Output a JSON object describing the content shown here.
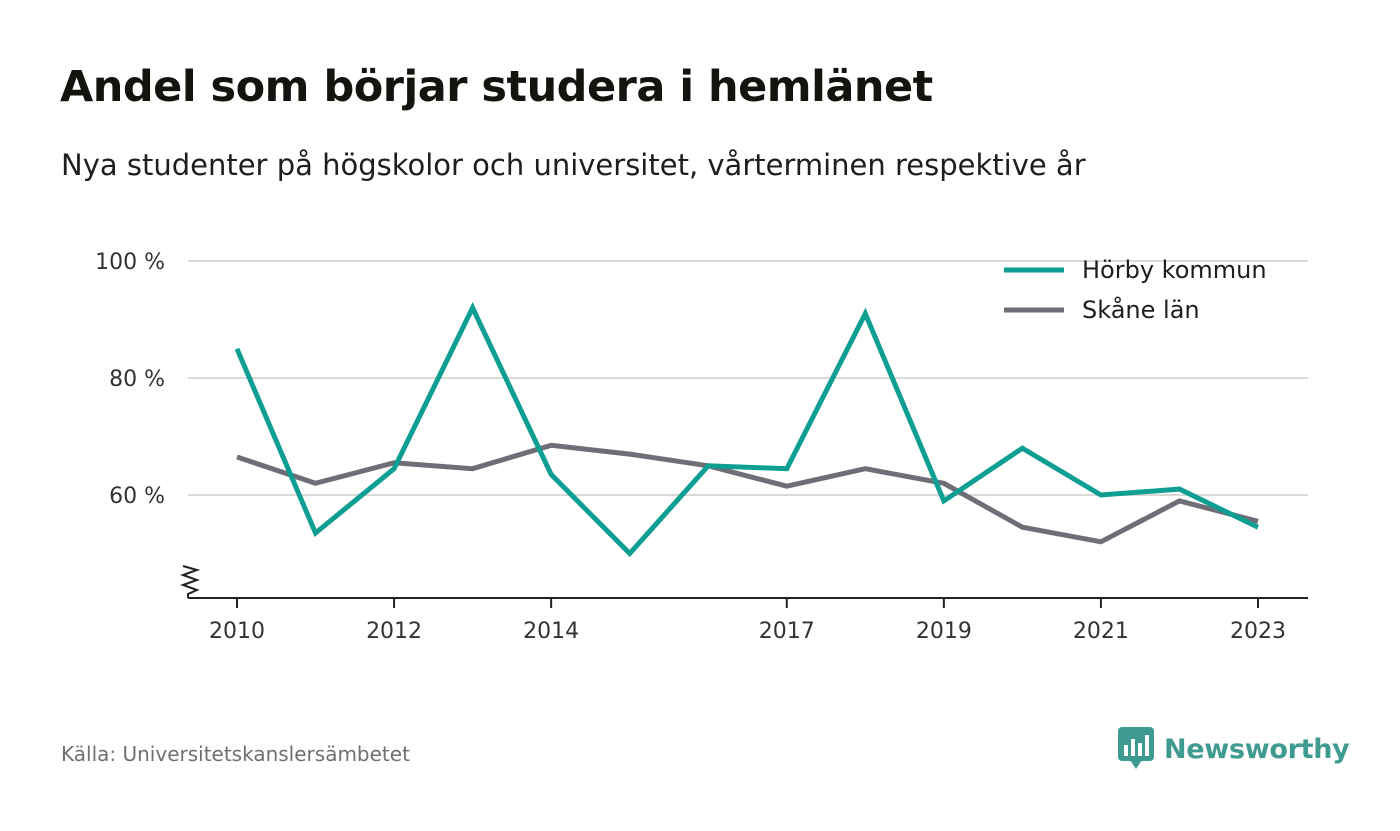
{
  "title": "Andel som börjar studera i hemlänet",
  "subtitle": "Nya studenter på högskolor och universitet, vårterminen respektive år",
  "source": "Källa: Universitetskanslersämbetet",
  "brand": {
    "name": "Newsworthy",
    "color": "#3f9b90",
    "icon": "newsworthy-logo-icon"
  },
  "chart_data": {
    "type": "line",
    "title": "Andel som börjar studera i hemlänet",
    "subtitle": "Nya studenter på högskolor och universitet, vårterminen respektive år",
    "ylim": [
      42.5,
      100
    ],
    "y_ticks": [
      {
        "value": 60,
        "label": "60 %"
      },
      {
        "value": 80,
        "label": "80 %"
      },
      {
        "value": 100,
        "label": "100 %"
      }
    ],
    "x_ticks": [
      {
        "value": 2010,
        "label": "2010"
      },
      {
        "value": 2012,
        "label": "2012"
      },
      {
        "value": 2014,
        "label": "2014"
      },
      {
        "value": 2017,
        "label": "2017"
      },
      {
        "value": 2019,
        "label": "2019"
      },
      {
        "value": 2021,
        "label": "2021"
      },
      {
        "value": 2023,
        "label": "2023"
      }
    ],
    "xlim": [
      2009.35,
      2023.65
    ],
    "grid": true,
    "y_axis_break": true,
    "legend_position": "top-right",
    "x": [
      2010,
      2011,
      2012,
      2013,
      2014,
      2015,
      2016,
      2017,
      2018,
      2019,
      2020,
      2021,
      2022,
      2023
    ],
    "series": [
      {
        "name": "Hörby kommun",
        "color": "#0f9e92",
        "values": [
          85.0,
          53.5,
          64.5,
          92.0,
          63.5,
          50.0,
          65.0,
          64.5,
          91.0,
          59.0,
          68.0,
          60.0,
          61.0,
          54.5
        ]
      },
      {
        "name": "Skåne län",
        "color": "#6e6e76",
        "values": [
          66.5,
          62.0,
          65.5,
          64.5,
          68.5,
          67.0,
          65.0,
          61.5,
          64.5,
          62.0,
          54.5,
          52.0,
          59.0,
          55.5
        ]
      }
    ]
  }
}
